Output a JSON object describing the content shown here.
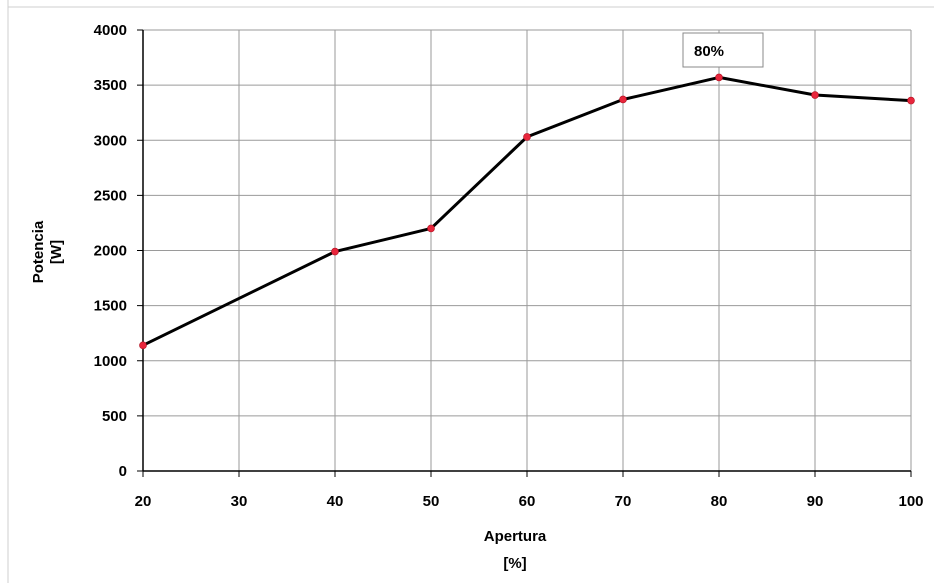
{
  "chart_data": {
    "type": "line",
    "title": "",
    "xlabel_line1": "Apertura",
    "xlabel_line2": "[%]",
    "ylabel_line1": "Potencia",
    "ylabel_line2": "[W]",
    "x_ticks": [
      "20",
      "30",
      "40",
      "50",
      "60",
      "70",
      "80",
      "90",
      "100"
    ],
    "y_ticks": [
      "0",
      "500",
      "1000",
      "1500",
      "2000",
      "2500",
      "3000",
      "3500",
      "4000"
    ],
    "xlim": [
      20,
      100
    ],
    "ylim": [
      0,
      4000
    ],
    "grid": true,
    "series": [
      {
        "x": [
          20,
          40,
          50,
          60,
          70,
          80,
          90,
          100
        ],
        "y": [
          1140,
          1990,
          2200,
          3030,
          3370,
          3570,
          3410,
          3360
        ]
      }
    ],
    "annotation": {
      "text": "80%",
      "x": 80,
      "y": 3570
    },
    "colors": {
      "line": "#000000",
      "marker": "#e8263c",
      "grid": "#9a9a9a",
      "axis": "#000000"
    }
  }
}
